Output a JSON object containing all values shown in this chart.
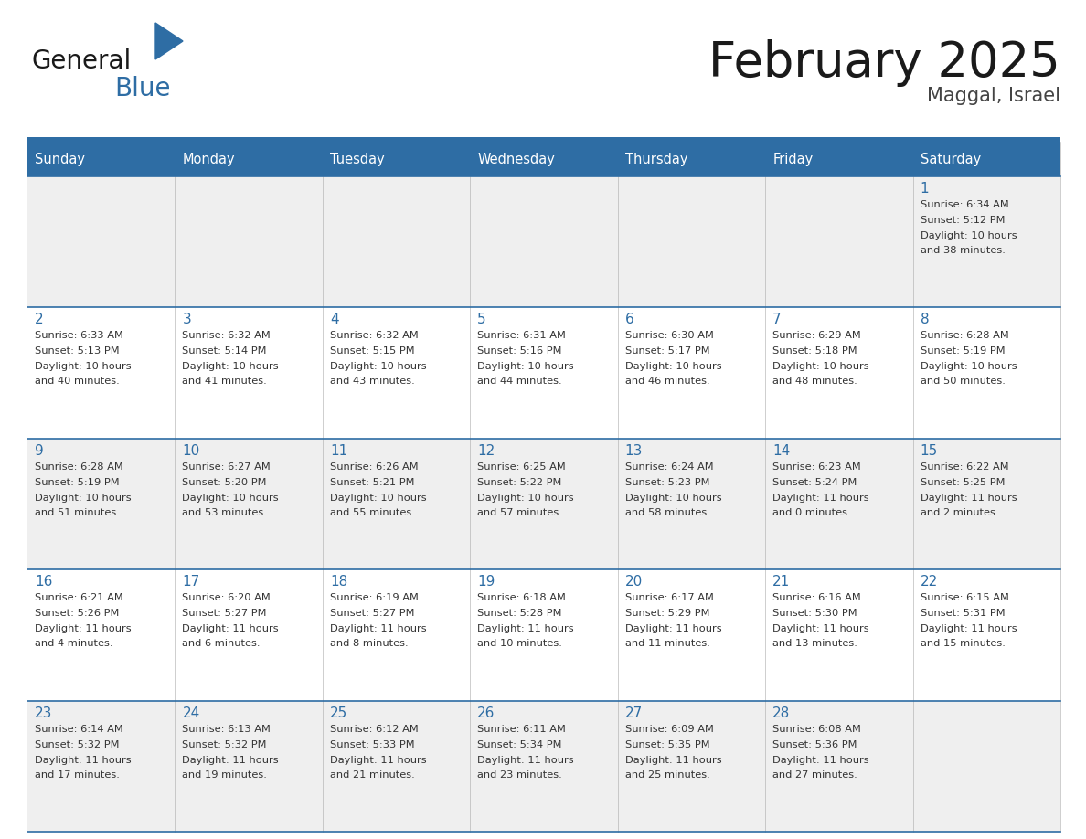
{
  "title": "February 2025",
  "subtitle": "Maggal, Israel",
  "header_bg": "#2E6DA4",
  "header_text_color": "#FFFFFF",
  "cell_bg_light": "#EFEFEF",
  "cell_bg_white": "#FFFFFF",
  "day_names": [
    "Sunday",
    "Monday",
    "Tuesday",
    "Wednesday",
    "Thursday",
    "Friday",
    "Saturday"
  ],
  "day_number_color": "#2E6DA4",
  "text_color": "#333333",
  "border_color": "#2E6DA4",
  "weeks": [
    [
      {
        "day": null,
        "sunrise": null,
        "sunset": null,
        "daylight": null
      },
      {
        "day": null,
        "sunrise": null,
        "sunset": null,
        "daylight": null
      },
      {
        "day": null,
        "sunrise": null,
        "sunset": null,
        "daylight": null
      },
      {
        "day": null,
        "sunrise": null,
        "sunset": null,
        "daylight": null
      },
      {
        "day": null,
        "sunrise": null,
        "sunset": null,
        "daylight": null
      },
      {
        "day": null,
        "sunrise": null,
        "sunset": null,
        "daylight": null
      },
      {
        "day": 1,
        "sunrise": "6:34 AM",
        "sunset": "5:12 PM",
        "daylight": "10 hours and 38 minutes."
      }
    ],
    [
      {
        "day": 2,
        "sunrise": "6:33 AM",
        "sunset": "5:13 PM",
        "daylight": "10 hours and 40 minutes."
      },
      {
        "day": 3,
        "sunrise": "6:32 AM",
        "sunset": "5:14 PM",
        "daylight": "10 hours and 41 minutes."
      },
      {
        "day": 4,
        "sunrise": "6:32 AM",
        "sunset": "5:15 PM",
        "daylight": "10 hours and 43 minutes."
      },
      {
        "day": 5,
        "sunrise": "6:31 AM",
        "sunset": "5:16 PM",
        "daylight": "10 hours and 44 minutes."
      },
      {
        "day": 6,
        "sunrise": "6:30 AM",
        "sunset": "5:17 PM",
        "daylight": "10 hours and 46 minutes."
      },
      {
        "day": 7,
        "sunrise": "6:29 AM",
        "sunset": "5:18 PM",
        "daylight": "10 hours and 48 minutes."
      },
      {
        "day": 8,
        "sunrise": "6:28 AM",
        "sunset": "5:19 PM",
        "daylight": "10 hours and 50 minutes."
      }
    ],
    [
      {
        "day": 9,
        "sunrise": "6:28 AM",
        "sunset": "5:19 PM",
        "daylight": "10 hours and 51 minutes."
      },
      {
        "day": 10,
        "sunrise": "6:27 AM",
        "sunset": "5:20 PM",
        "daylight": "10 hours and 53 minutes."
      },
      {
        "day": 11,
        "sunrise": "6:26 AM",
        "sunset": "5:21 PM",
        "daylight": "10 hours and 55 minutes."
      },
      {
        "day": 12,
        "sunrise": "6:25 AM",
        "sunset": "5:22 PM",
        "daylight": "10 hours and 57 minutes."
      },
      {
        "day": 13,
        "sunrise": "6:24 AM",
        "sunset": "5:23 PM",
        "daylight": "10 hours and 58 minutes."
      },
      {
        "day": 14,
        "sunrise": "6:23 AM",
        "sunset": "5:24 PM",
        "daylight": "11 hours and 0 minutes."
      },
      {
        "day": 15,
        "sunrise": "6:22 AM",
        "sunset": "5:25 PM",
        "daylight": "11 hours and 2 minutes."
      }
    ],
    [
      {
        "day": 16,
        "sunrise": "6:21 AM",
        "sunset": "5:26 PM",
        "daylight": "11 hours and 4 minutes."
      },
      {
        "day": 17,
        "sunrise": "6:20 AM",
        "sunset": "5:27 PM",
        "daylight": "11 hours and 6 minutes."
      },
      {
        "day": 18,
        "sunrise": "6:19 AM",
        "sunset": "5:27 PM",
        "daylight": "11 hours and 8 minutes."
      },
      {
        "day": 19,
        "sunrise": "6:18 AM",
        "sunset": "5:28 PM",
        "daylight": "11 hours and 10 minutes."
      },
      {
        "day": 20,
        "sunrise": "6:17 AM",
        "sunset": "5:29 PM",
        "daylight": "11 hours and 11 minutes."
      },
      {
        "day": 21,
        "sunrise": "6:16 AM",
        "sunset": "5:30 PM",
        "daylight": "11 hours and 13 minutes."
      },
      {
        "day": 22,
        "sunrise": "6:15 AM",
        "sunset": "5:31 PM",
        "daylight": "11 hours and 15 minutes."
      }
    ],
    [
      {
        "day": 23,
        "sunrise": "6:14 AM",
        "sunset": "5:32 PM",
        "daylight": "11 hours and 17 minutes."
      },
      {
        "day": 24,
        "sunrise": "6:13 AM",
        "sunset": "5:32 PM",
        "daylight": "11 hours and 19 minutes."
      },
      {
        "day": 25,
        "sunrise": "6:12 AM",
        "sunset": "5:33 PM",
        "daylight": "11 hours and 21 minutes."
      },
      {
        "day": 26,
        "sunrise": "6:11 AM",
        "sunset": "5:34 PM",
        "daylight": "11 hours and 23 minutes."
      },
      {
        "day": 27,
        "sunrise": "6:09 AM",
        "sunset": "5:35 PM",
        "daylight": "11 hours and 25 minutes."
      },
      {
        "day": 28,
        "sunrise": "6:08 AM",
        "sunset": "5:36 PM",
        "daylight": "11 hours and 27 minutes."
      },
      {
        "day": null,
        "sunrise": null,
        "sunset": null,
        "daylight": null
      }
    ]
  ],
  "logo_text1": "General",
  "logo_text2": "Blue",
  "logo_color1": "#1a1a1a",
  "logo_color2": "#2E6DA4",
  "logo_triangle_color": "#2E6DA4"
}
